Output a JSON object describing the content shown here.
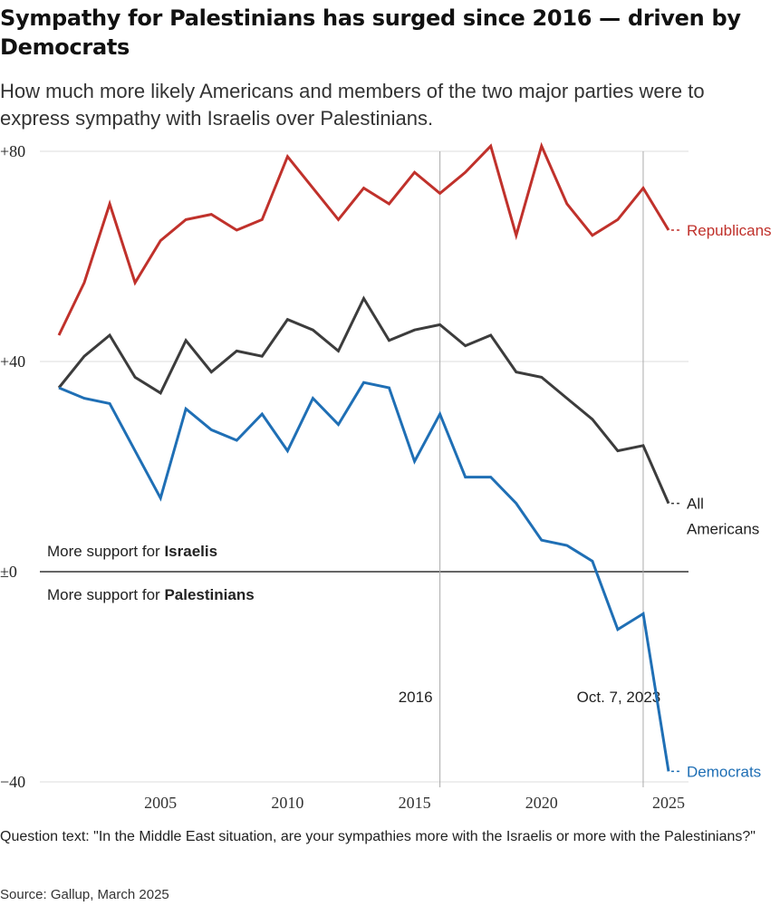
{
  "header": {
    "title": "Sympathy for Palestinians has surged since 2016 —  driven by Democrats",
    "subtitle": "How much more likely Americans and members of the two major parties were to express sympathy with Israelis over Palestinians."
  },
  "annotations": {
    "israelis_prefix": "More support for ",
    "israelis_bold": "Israelis",
    "palestinians_prefix": "More support for ",
    "palestinians_bold": "Palestinians",
    "marker_2016": "2016",
    "marker_oct7": "Oct. 7, 2023"
  },
  "footer": {
    "question": "Question text: \"In the Middle East situation, are your sympathies more with the Israelis or more with the Palestinians?\"",
    "source": "Source: Gallup, March 2025"
  },
  "colors": {
    "republicans": "#c0312b",
    "all": "#3c3c3c",
    "democrats": "#1f6fb5",
    "grid": "#dddddd",
    "zero": "#333333"
  },
  "chart_data": {
    "type": "line",
    "title": "Sympathy for Palestinians has surged since 2016 —  driven by Democrats",
    "xlabel": "",
    "ylabel": "",
    "xlim": [
      2001,
      2025
    ],
    "ylim": [
      -40,
      80
    ],
    "x_ticks": [
      2005,
      2010,
      2015,
      2020,
      2025
    ],
    "x_tick_labels": [
      "2005",
      "2010",
      "2015",
      "2020",
      "2025"
    ],
    "y_ticks": [
      80,
      40,
      0,
      -40
    ],
    "y_tick_labels": [
      "+80",
      "+40",
      "±0",
      "−40"
    ],
    "reference_lines": [
      {
        "x": 2016,
        "label": "2016"
      },
      {
        "x": 2024,
        "label": "Oct. 7, 2023"
      }
    ],
    "series": [
      {
        "name": "Republicans",
        "label": "Republicans",
        "color": "#c0312b",
        "x": [
          2001,
          2002,
          2003,
          2004,
          2005,
          2006,
          2007,
          2008,
          2009,
          2010,
          2011,
          2012,
          2013,
          2014,
          2015,
          2016,
          2017,
          2018,
          2019,
          2020,
          2021,
          2022,
          2023,
          2024,
          2025
        ],
        "values": [
          45,
          55,
          70,
          55,
          63,
          67,
          68,
          65,
          67,
          79,
          73,
          67,
          73,
          70,
          76,
          72,
          76,
          81,
          64,
          81,
          70,
          64,
          67,
          73,
          65
        ]
      },
      {
        "name": "All Americans",
        "label_line1": "All",
        "label_line2": "Americans",
        "color": "#3c3c3c",
        "x": [
          2001,
          2002,
          2003,
          2004,
          2005,
          2006,
          2007,
          2008,
          2009,
          2010,
          2011,
          2012,
          2013,
          2014,
          2015,
          2016,
          2017,
          2018,
          2019,
          2020,
          2021,
          2022,
          2023,
          2024,
          2025
        ],
        "values": [
          35,
          41,
          45,
          37,
          34,
          44,
          38,
          42,
          41,
          48,
          46,
          42,
          52,
          44,
          46,
          47,
          43,
          45,
          38,
          37,
          33,
          29,
          23,
          24,
          13
        ]
      },
      {
        "name": "Democrats",
        "label": "Democrats",
        "color": "#1f6fb5",
        "x": [
          2001,
          2002,
          2003,
          2004,
          2005,
          2006,
          2007,
          2008,
          2009,
          2010,
          2011,
          2012,
          2013,
          2014,
          2015,
          2016,
          2017,
          2018,
          2019,
          2020,
          2021,
          2022,
          2023,
          2024,
          2025
        ],
        "values": [
          35,
          33,
          32,
          23,
          14,
          31,
          27,
          25,
          30,
          23,
          33,
          28,
          36,
          35,
          21,
          30,
          18,
          18,
          13,
          6,
          5,
          2,
          -11,
          -8,
          -38
        ]
      }
    ],
    "legend": "direct labels at line ends (right)"
  }
}
